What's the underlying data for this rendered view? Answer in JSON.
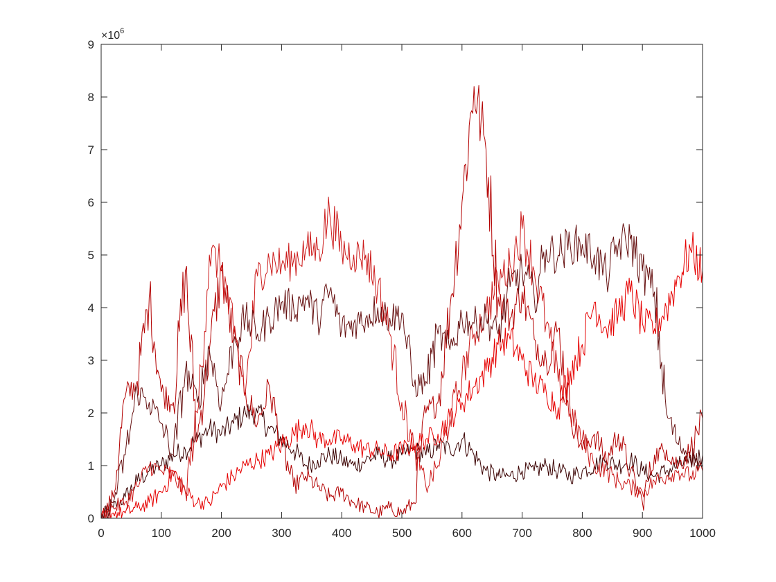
{
  "chart_data": {
    "type": "line",
    "title": "",
    "xlabel": "",
    "ylabel": "",
    "xlim": [
      0,
      1000
    ],
    "ylim": [
      0,
      9000000
    ],
    "y_exponent_label": "×10",
    "y_exponent_power": "6",
    "x_ticks": [
      0,
      100,
      200,
      300,
      400,
      500,
      600,
      700,
      800,
      900,
      1000
    ],
    "x_tick_labels": [
      "0",
      "100",
      "200",
      "300",
      "400",
      "500",
      "600",
      "700",
      "800",
      "900",
      "1000"
    ],
    "y_ticks": [
      0,
      1000000,
      2000000,
      3000000,
      4000000,
      5000000,
      6000000,
      7000000,
      8000000,
      9000000
    ],
    "y_tick_labels": [
      "0",
      "1",
      "2",
      "3",
      "4",
      "5",
      "6",
      "7",
      "8",
      "9"
    ],
    "grid": false,
    "box": true,
    "series": [
      {
        "color": "#3a0000",
        "x": [
          0,
          20,
          40,
          60,
          80,
          100,
          120,
          140,
          160,
          180,
          200,
          220,
          240,
          260,
          280,
          300,
          320,
          340,
          360,
          380,
          400,
          420,
          440,
          460,
          480,
          500,
          520,
          540,
          560,
          580,
          600,
          620,
          640,
          660,
          680,
          700,
          720,
          740,
          760,
          780,
          800,
          820,
          840,
          860,
          880,
          900,
          920,
          940,
          960,
          980,
          1000
        ],
        "y": [
          0,
          200000,
          400000,
          700000,
          900000,
          1000000,
          1200000,
          1300000,
          1500000,
          1700000,
          1600000,
          1800000,
          2000000,
          2000000,
          1700000,
          1500000,
          1300000,
          1000000,
          1100000,
          1200000,
          1100000,
          1000000,
          1100000,
          1200000,
          1100000,
          1200000,
          1300000,
          1200000,
          1400000,
          1300000,
          1500000,
          1200000,
          900000,
          800000,
          800000,
          900000,
          900000,
          1000000,
          900000,
          800000,
          900000,
          1000000,
          1100000,
          1000000,
          1100000,
          900000,
          800000,
          900000,
          1000000,
          1100000,
          1200000
        ]
      },
      {
        "color": "#b30000",
        "x": [
          0,
          20,
          40,
          60,
          80,
          100,
          120,
          140,
          160,
          180,
          200,
          220,
          240,
          260,
          280,
          300,
          320,
          340,
          360,
          380,
          400,
          420,
          440,
          460,
          480,
          500,
          520,
          540,
          560,
          580,
          600,
          620,
          640,
          660,
          680,
          700,
          720,
          740,
          760,
          780,
          800,
          820,
          840,
          860,
          880,
          900,
          920,
          940,
          960,
          980,
          1000
        ],
        "y": [
          0,
          400000,
          2300000,
          2600000,
          4200000,
          2400000,
          2200000,
          4700000,
          1500000,
          3200000,
          4700000,
          3400000,
          2400000,
          1800000,
          2500000,
          1400000,
          600000,
          800000,
          600000,
          400000,
          500000,
          300000,
          200000,
          100000,
          200000,
          100000,
          300000,
          2000000,
          2200000,
          4000000,
          6000000,
          8200000,
          7000000,
          4200000,
          3800000,
          4300000,
          3400000,
          3000000,
          3600000,
          2000000,
          1300000,
          1600000,
          1100000,
          1600000,
          900000,
          300000,
          1200000,
          1300000,
          1000000,
          1300000,
          1900000
        ]
      },
      {
        "color": "#e60000",
        "x": [
          0,
          20,
          40,
          60,
          80,
          100,
          120,
          140,
          160,
          180,
          200,
          220,
          240,
          260,
          280,
          300,
          320,
          340,
          360,
          380,
          400,
          420,
          440,
          460,
          480,
          500,
          520,
          540,
          560,
          580,
          600,
          620,
          640,
          660,
          680,
          700,
          720,
          740,
          760,
          780,
          800,
          820,
          840,
          860,
          880,
          900,
          920,
          940,
          960,
          980,
          1000
        ],
        "y": [
          0,
          100000,
          100000,
          200000,
          300000,
          500000,
          900000,
          500000,
          300000,
          300000,
          600000,
          800000,
          1000000,
          1100000,
          1200000,
          1400000,
          1600000,
          1800000,
          1500000,
          1500000,
          1500000,
          1400000,
          1300000,
          1300000,
          1200000,
          1300000,
          1400000,
          1500000,
          1600000,
          1900000,
          2200000,
          2500000,
          2800000,
          3300000,
          3400000,
          3000000,
          2600000,
          2400000,
          2100000,
          2800000,
          3300000,
          4100000,
          3600000,
          3900000,
          4300000,
          3700000,
          3600000,
          4000000,
          4600000,
          5100000,
          4700000
        ]
      },
      {
        "color": "#cc1a1a",
        "x": [
          0,
          20,
          40,
          60,
          80,
          100,
          120,
          140,
          160,
          180,
          200,
          220,
          240,
          260,
          280,
          300,
          320,
          340,
          360,
          380,
          400,
          420,
          440,
          460,
          480,
          500,
          520,
          540,
          560,
          580,
          600,
          620,
          640,
          660,
          680,
          700,
          720,
          740,
          760,
          780,
          800,
          820,
          840,
          860,
          880,
          900,
          920,
          940,
          960,
          980,
          1000
        ],
        "y": [
          0,
          200000,
          300000,
          600000,
          1000000,
          900000,
          800000,
          500000,
          2000000,
          5000000,
          4800000,
          3500000,
          2400000,
          4600000,
          4900000,
          4800000,
          4900000,
          5100000,
          5100000,
          5800000,
          5100000,
          5000000,
          5000000,
          4400000,
          3500000,
          2200000,
          1300000,
          600000,
          1000000,
          1900000,
          2700000,
          3500000,
          3900000,
          4500000,
          4800000,
          5500000,
          4700000,
          3700000,
          2600000,
          2000000,
          1500000,
          1000000,
          900000,
          700000,
          600000,
          500000,
          700000,
          800000,
          900000,
          800000,
          900000
        ]
      },
      {
        "color": "#661010",
        "x": [
          0,
          20,
          40,
          60,
          80,
          100,
          120,
          140,
          160,
          180,
          200,
          220,
          240,
          260,
          280,
          300,
          320,
          340,
          360,
          380,
          400,
          420,
          440,
          460,
          480,
          500,
          520,
          540,
          560,
          580,
          600,
          620,
          640,
          660,
          680,
          700,
          720,
          740,
          760,
          780,
          800,
          820,
          840,
          860,
          880,
          900,
          920,
          940,
          960,
          980,
          1000
        ],
        "y": [
          0,
          300000,
          1200000,
          2400000,
          2200000,
          1800000,
          1200000,
          2800000,
          2200000,
          3200000,
          2200000,
          3300000,
          3800000,
          3500000,
          3800000,
          4100000,
          4000000,
          4200000,
          3800000,
          4300000,
          3600000,
          3700000,
          3800000,
          4000000,
          3800000,
          3900000,
          2500000,
          2600000,
          3500000,
          3200000,
          3800000,
          3700000,
          3800000,
          3500000,
          4400000,
          4700000,
          4200000,
          5100000,
          5000000,
          5200000,
          5200000,
          5000000,
          4600000,
          5200000,
          5300000,
          4700000,
          4300000,
          2000000,
          1400000,
          1200000,
          1000000
        ]
      }
    ]
  }
}
